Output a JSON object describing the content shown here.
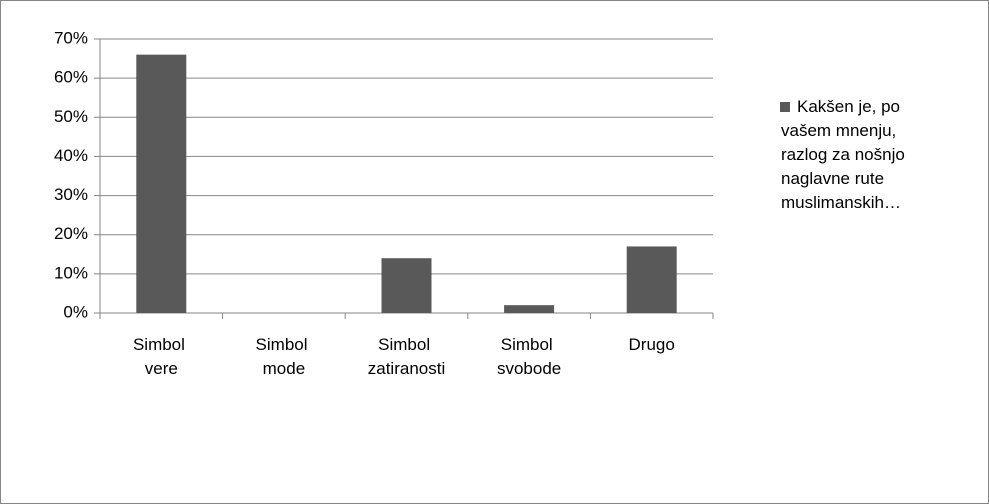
{
  "chart_data": {
    "type": "bar",
    "categories": [
      "Simbol vere",
      "Simbol mode",
      "Simbol zatiranosti",
      "Simbol svobode",
      "Drugo"
    ],
    "series": [
      {
        "name": "Kakšen je, po vašem mnenju, razlog za nošnjo naglavne rute muslimanskih…",
        "color": "#595959",
        "values": [
          66,
          0,
          14,
          2,
          17
        ]
      }
    ],
    "ylim": [
      0,
      70
    ],
    "yticks": [
      {
        "value": 0,
        "label": "0%"
      },
      {
        "value": 10,
        "label": "10%"
      },
      {
        "value": 20,
        "label": "20%"
      },
      {
        "value": 30,
        "label": "30%"
      },
      {
        "value": 40,
        "label": "40%"
      },
      {
        "value": 50,
        "label": "50%"
      },
      {
        "value": 60,
        "label": "60%"
      },
      {
        "value": 70,
        "label": "70%"
      }
    ],
    "grid": true,
    "legend": "right"
  }
}
